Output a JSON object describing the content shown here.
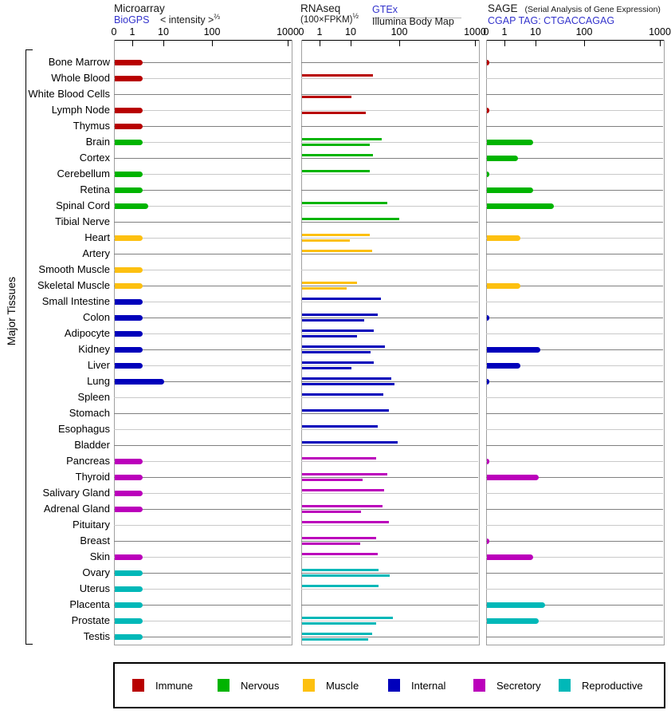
{
  "chart_data": {
    "type": "bar",
    "orientation": "horizontal",
    "scale": "log",
    "tick_values": [
      "0",
      "1",
      "10",
      "100",
      "1000"
    ],
    "ylabel": "Major Tissues",
    "panels": [
      {
        "id": "microarray",
        "title": "Microarray",
        "link": "BioGPS",
        "transform_base": "< intensity >",
        "transform_sup": "⅔"
      },
      {
        "id": "rnaseq",
        "title": "RNAseq",
        "formula_base": "(100×FPKM)",
        "formula_sup": "½",
        "link": "GTEx",
        "sublabel": "Illumina Body Map"
      },
      {
        "id": "sage",
        "title": "SAGE",
        "title_note": "(Serial Analysis of Gene Expression)",
        "link": "CGAP TAG: CTGACCAGAG"
      }
    ],
    "category_colors": {
      "immune": "#b80000",
      "nervous": "#00b400",
      "muscle": "#fdc010",
      "internal": "#0000bb",
      "secretory": "#bb00bb",
      "reproductive": "#00b8b8"
    },
    "legend": [
      {
        "label": "Immune",
        "category": "immune"
      },
      {
        "label": "Nervous",
        "category": "nervous"
      },
      {
        "label": "Muscle",
        "category": "muscle"
      },
      {
        "label": "Internal",
        "category": "internal"
      },
      {
        "label": "Secretory",
        "category": "secretory"
      },
      {
        "label": "Reproductive",
        "category": "reproductive"
      }
    ],
    "series_names": [
      "Microarray",
      "RNAseq GTEx",
      "RNAseq Illumina Body Map",
      "SAGE"
    ],
    "rows": [
      {
        "tissue": "Bone Marrow",
        "category": "immune",
        "microarray": 2,
        "gtex": null,
        "bodymap": null,
        "sage": 0.2
      },
      {
        "tissue": "Whole Blood",
        "category": "immune",
        "microarray": 2,
        "gtex": 28,
        "bodymap": null,
        "sage": null
      },
      {
        "tissue": "White Blood Cells",
        "category": "immune",
        "microarray": null,
        "gtex": null,
        "bodymap": 10,
        "sage": null
      },
      {
        "tissue": "Lymph Node",
        "category": "immune",
        "microarray": 2,
        "gtex": null,
        "bodymap": 20,
        "sage": 0.2
      },
      {
        "tissue": "Thymus",
        "category": "immune",
        "microarray": 2,
        "gtex": null,
        "bodymap": null,
        "sage": null
      },
      {
        "tissue": "Brain",
        "category": "nervous",
        "microarray": 2,
        "gtex": 42,
        "bodymap": 24,
        "sage": 8
      },
      {
        "tissue": "Cortex",
        "category": "nervous",
        "microarray": null,
        "gtex": 28,
        "bodymap": null,
        "sage": 2.5
      },
      {
        "tissue": "Cerebellum",
        "category": "nervous",
        "microarray": 2,
        "gtex": 24,
        "bodymap": null,
        "sage": 0.2
      },
      {
        "tissue": "Retina",
        "category": "nervous",
        "microarray": 2,
        "gtex": null,
        "bodymap": null,
        "sage": 8
      },
      {
        "tissue": "Spinal Cord",
        "category": "nervous",
        "microarray": 3,
        "gtex": 55,
        "bodymap": null,
        "sage": 23
      },
      {
        "tissue": "Tibial Nerve",
        "category": "nervous",
        "microarray": null,
        "gtex": 95,
        "bodymap": null,
        "sage": null
      },
      {
        "tissue": "Heart",
        "category": "muscle",
        "microarray": 2,
        "gtex": 24,
        "bodymap": 9,
        "sage": 3
      },
      {
        "tissue": "Artery",
        "category": "muscle",
        "microarray": null,
        "gtex": 27,
        "bodymap": null,
        "sage": null
      },
      {
        "tissue": "Smooth Muscle",
        "category": "muscle",
        "microarray": 2,
        "gtex": null,
        "bodymap": null,
        "sage": null
      },
      {
        "tissue": "Skeletal Muscle",
        "category": "muscle",
        "microarray": 2,
        "gtex": 13,
        "bodymap": 7,
        "sage": 3
      },
      {
        "tissue": "Small Intestine",
        "category": "internal",
        "microarray": 2,
        "gtex": 40,
        "bodymap": null,
        "sage": null
      },
      {
        "tissue": "Colon",
        "category": "internal",
        "microarray": 2,
        "gtex": 35,
        "bodymap": 18,
        "sage": 0.2
      },
      {
        "tissue": "Adipocyte",
        "category": "internal",
        "microarray": 2,
        "gtex": 29,
        "bodymap": 13,
        "sage": null
      },
      {
        "tissue": "Kidney",
        "category": "internal",
        "microarray": 2,
        "gtex": 48,
        "bodymap": 25,
        "sage": 12
      },
      {
        "tissue": "Liver",
        "category": "internal",
        "microarray": 2,
        "gtex": 29,
        "bodymap": 10,
        "sage": 3
      },
      {
        "tissue": "Lung",
        "category": "internal",
        "microarray": 10,
        "gtex": 65,
        "bodymap": 78,
        "sage": 0.2
      },
      {
        "tissue": "Spleen",
        "category": "internal",
        "microarray": null,
        "gtex": 46,
        "bodymap": null,
        "sage": null
      },
      {
        "tissue": "Stomach",
        "category": "internal",
        "microarray": null,
        "gtex": 58,
        "bodymap": null,
        "sage": null
      },
      {
        "tissue": "Esophagus",
        "category": "internal",
        "microarray": null,
        "gtex": 35,
        "bodymap": null,
        "sage": null
      },
      {
        "tissue": "Bladder",
        "category": "internal",
        "microarray": null,
        "gtex": 90,
        "bodymap": null,
        "sage": null
      },
      {
        "tissue": "Pancreas",
        "category": "secretory",
        "microarray": 2,
        "gtex": 32,
        "bodymap": null,
        "sage": 0.2
      },
      {
        "tissue": "Thyroid",
        "category": "secretory",
        "microarray": 2,
        "gtex": 55,
        "bodymap": 17,
        "sage": 11
      },
      {
        "tissue": "Salivary Gland",
        "category": "secretory",
        "microarray": 2,
        "gtex": 47,
        "bodymap": null,
        "sage": null
      },
      {
        "tissue": "Adrenal Gland",
        "category": "secretory",
        "microarray": 2,
        "gtex": 43,
        "bodymap": 16,
        "sage": null
      },
      {
        "tissue": "Pituitary",
        "category": "secretory",
        "microarray": null,
        "gtex": 58,
        "bodymap": null,
        "sage": null
      },
      {
        "tissue": "Breast",
        "category": "secretory",
        "microarray": null,
        "gtex": 32,
        "bodymap": 15,
        "sage": 0.2
      },
      {
        "tissue": "Skin",
        "category": "secretory",
        "microarray": 2,
        "gtex": 35,
        "bodymap": null,
        "sage": 8
      },
      {
        "tissue": "Ovary",
        "category": "reproductive",
        "microarray": 2,
        "gtex": 36,
        "bodymap": 62,
        "sage": null
      },
      {
        "tissue": "Uterus",
        "category": "reproductive",
        "microarray": 2,
        "gtex": 36,
        "bodymap": null,
        "sage": null
      },
      {
        "tissue": "Placenta",
        "category": "reproductive",
        "microarray": 2,
        "gtex": null,
        "bodymap": null,
        "sage": 15
      },
      {
        "tissue": "Prostate",
        "category": "reproductive",
        "microarray": 2,
        "gtex": 72,
        "bodymap": 32,
        "sage": 11
      },
      {
        "tissue": "Testis",
        "category": "reproductive",
        "microarray": 2,
        "gtex": 27,
        "bodymap": 22,
        "sage": null
      }
    ]
  }
}
